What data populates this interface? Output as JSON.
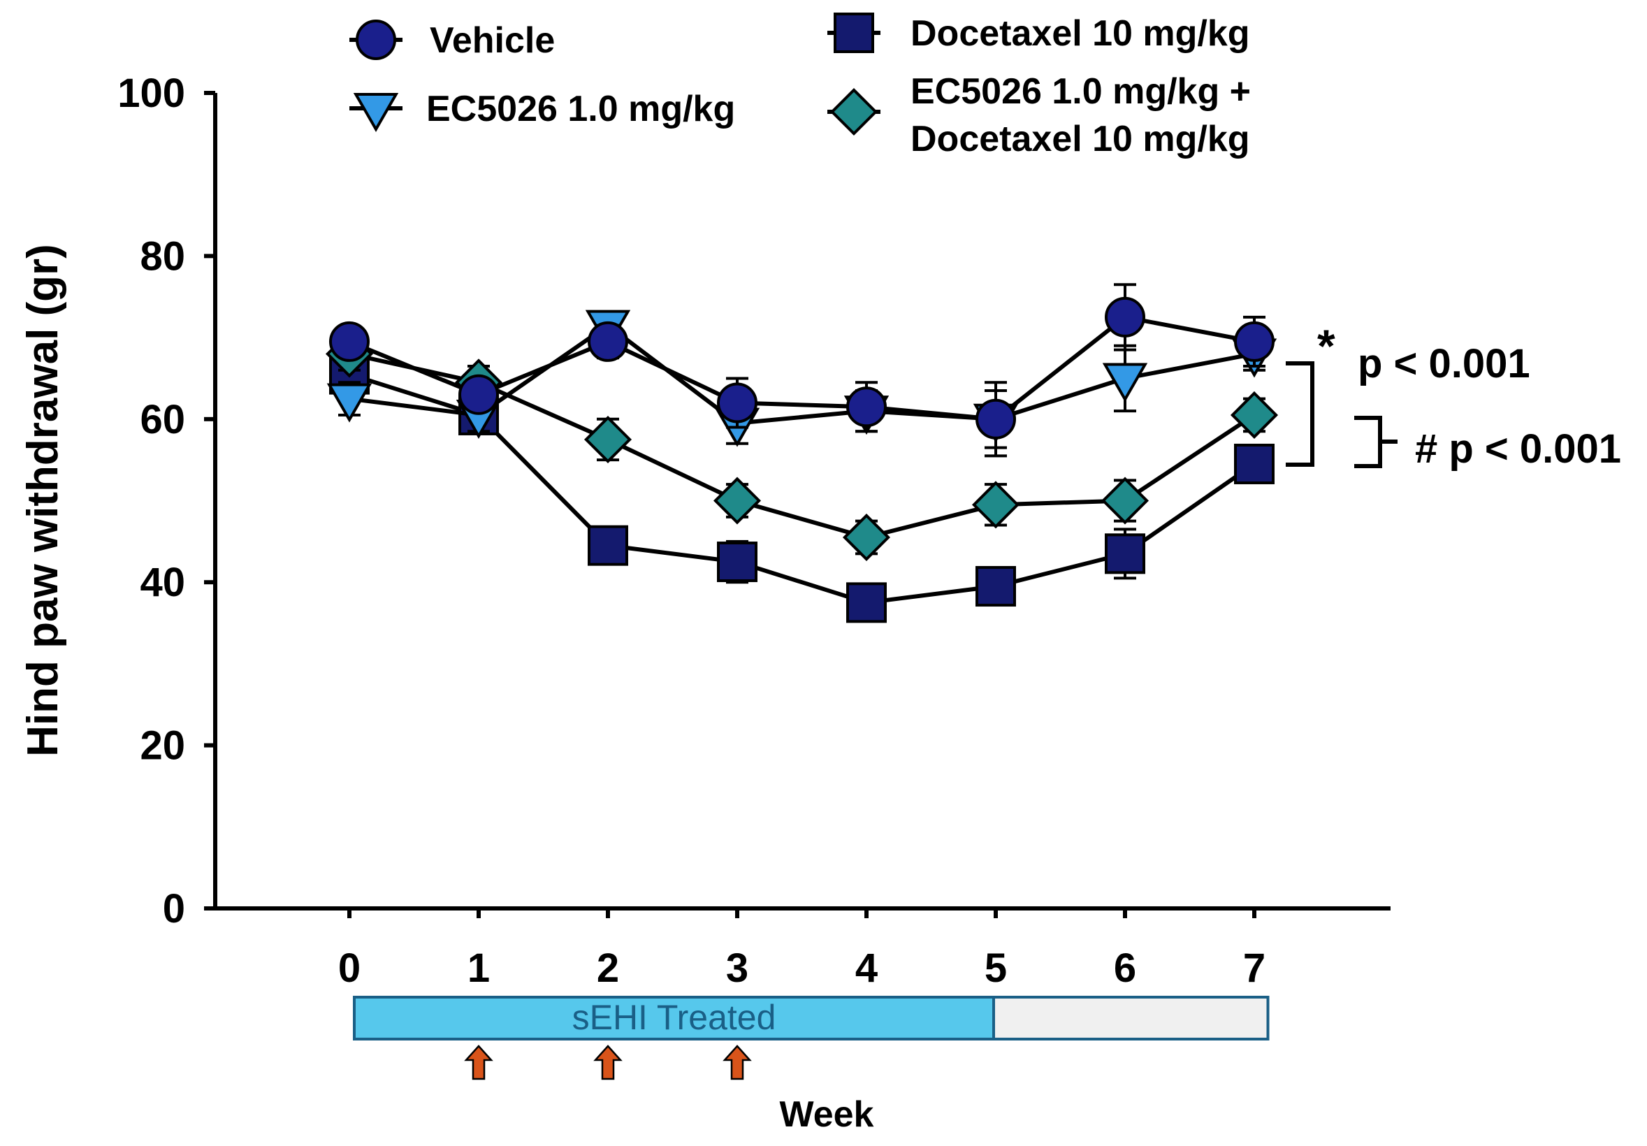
{
  "chart_data": {
    "type": "line",
    "title": "",
    "xlabel": "Week",
    "ylabel": "Hind paw withdrawal (gr)",
    "xlim": [
      -1,
      8
    ],
    "ylim": [
      0,
      100
    ],
    "x": [
      0,
      1,
      2,
      3,
      4,
      5,
      6,
      7
    ],
    "x_ticks": [
      "0",
      "1",
      "2",
      "3",
      "4",
      "5",
      "6",
      "7"
    ],
    "y_ticks": [
      0,
      20,
      40,
      60,
      80,
      100
    ],
    "y_tick_labels": [
      "0",
      "20",
      "40",
      "60",
      "80",
      "100"
    ],
    "series": [
      {
        "name": "Vehicle",
        "marker": "circle",
        "color": "#1a1f8c",
        "values": [
          69.5,
          63,
          69.5,
          62,
          61.5,
          60,
          72.5,
          69.5
        ],
        "errors": [
          1.5,
          1.5,
          2,
          3,
          3,
          4.5,
          4,
          3
        ]
      },
      {
        "name": "EC5026 1.0 mg/kg",
        "marker": "triangle-down",
        "color": "#3399e6",
        "values": [
          62.5,
          60.5,
          71.5,
          59.5,
          61,
          60,
          65,
          68
        ],
        "errors": [
          2,
          2,
          1.5,
          2.5,
          2.5,
          3.5,
          4,
          2
        ]
      },
      {
        "name": "Docetaxel 10 mg/kg",
        "marker": "square",
        "color": "#141a6e",
        "values": [
          65.5,
          60.5,
          44.5,
          42.5,
          37.5,
          39.5,
          43.5,
          54.5
        ],
        "errors": [
          2,
          2,
          2,
          2.5,
          1.5,
          2,
          3,
          2
        ]
      },
      {
        "name": "EC5026 1.0 mg/kg + Docetaxel 10 mg/kg",
        "marker": "diamond",
        "color": "#1f8a8a",
        "values": [
          68,
          64.5,
          57.5,
          50,
          45.5,
          49.5,
          50,
          60.5
        ],
        "errors": [
          2,
          2,
          2.5,
          2,
          2,
          2.5,
          2.5,
          2
        ]
      }
    ],
    "legend": {
      "position": "top",
      "entries": [
        {
          "label_lines": [
            "Vehicle"
          ]
        },
        {
          "label_lines": [
            "EC5026 1.0 mg/kg"
          ]
        },
        {
          "label_lines": [
            "Docetaxel 10 mg/kg"
          ]
        },
        {
          "label_lines": [
            "EC5026 1.0 mg/kg +",
            "Docetaxel 10 mg/kg"
          ]
        }
      ]
    },
    "annotations": {
      "star_symbol": "*",
      "star_text": "p < 0.001",
      "hash_text": "# p < 0.001"
    },
    "treatment_bar": {
      "label": "sEHI Treated",
      "start_week": 0,
      "end_week": 5,
      "box_end_week": 7.1,
      "color": "#56c8ec",
      "rest_color": "#f0f0f0",
      "text_color": "#1a5f86"
    },
    "dose_arrows": {
      "weeks": [
        1,
        2,
        3
      ],
      "color": "#d9541a"
    }
  }
}
